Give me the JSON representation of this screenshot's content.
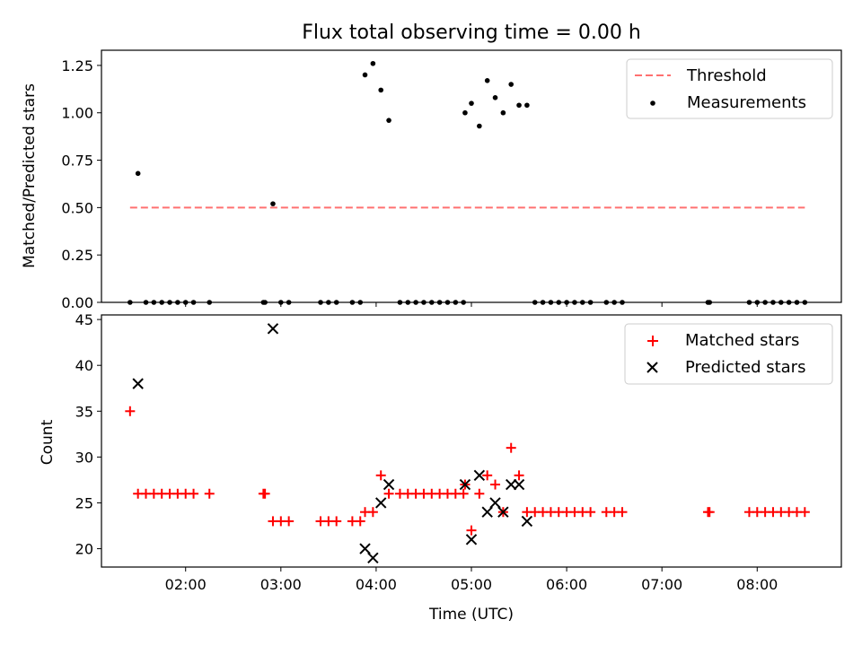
{
  "title": "Flux total observing time = 0.00 h",
  "chart_data": [
    {
      "type": "scatter",
      "ylabel": "Matched/Predicted stars",
      "xlabel": "",
      "xlim": [
        "01:07",
        "08:53"
      ],
      "ylim": [
        0,
        1.33
      ],
      "yticks": [
        "0.00",
        "0.25",
        "0.50",
        "0.75",
        "1.00",
        "1.25"
      ],
      "ytick_values": [
        0,
        0.25,
        0.5,
        0.75,
        1.0,
        1.25
      ],
      "grid": false,
      "legend_position": "top-right",
      "threshold": {
        "name": "Threshold",
        "y": 0.5,
        "x_range": [
          "01:25",
          "08:30"
        ],
        "color": "#ff7070"
      },
      "series": [
        {
          "name": "Measurements",
          "color": "#000000",
          "x": [
            "01:25",
            "01:30",
            "01:35",
            "01:40",
            "01:45",
            "01:50",
            "01:55",
            "02:00",
            "02:05",
            "02:15",
            "02:49",
            "02:50",
            "02:55",
            "03:00",
            "03:05",
            "03:25",
            "03:30",
            "03:35",
            "03:45",
            "03:50",
            "03:53",
            "03:58",
            "04:03",
            "04:08",
            "04:15",
            "04:20",
            "04:25",
            "04:30",
            "04:35",
            "04:40",
            "04:45",
            "04:50",
            "04:55",
            "04:56",
            "05:00",
            "05:05",
            "05:10",
            "05:15",
            "05:20",
            "05:25",
            "05:30",
            "05:35",
            "05:40",
            "05:45",
            "05:50",
            "05:55",
            "06:00",
            "06:05",
            "06:10",
            "06:15",
            "06:25",
            "06:30",
            "06:35",
            "07:29",
            "07:30",
            "07:55",
            "08:00",
            "08:05",
            "08:10",
            "08:15",
            "08:20",
            "08:25",
            "08:30"
          ],
          "y": [
            0,
            0.68,
            0,
            0,
            0,
            0,
            0,
            0,
            0,
            0,
            0,
            0,
            0.52,
            0,
            0,
            0,
            0,
            0,
            0,
            0,
            1.2,
            1.26,
            1.12,
            0.96,
            0,
            0,
            0,
            0,
            0,
            0,
            0,
            0,
            0,
            1.0,
            1.05,
            0.93,
            1.17,
            1.08,
            1.0,
            1.15,
            1.04,
            1.04,
            0,
            0,
            0,
            0,
            0,
            0,
            0,
            0,
            0,
            0,
            0,
            0,
            0,
            0,
            0,
            0,
            0,
            0,
            0,
            0,
            0
          ]
        }
      ]
    },
    {
      "type": "scatter",
      "ylabel": "Count",
      "xlabel": "Time (UTC)",
      "xlim": [
        "01:07",
        "08:53"
      ],
      "xticks": [
        "02:00",
        "03:00",
        "04:00",
        "05:00",
        "06:00",
        "07:00",
        "08:00"
      ],
      "ylim": [
        18,
        45.5
      ],
      "yticks": [
        "20",
        "25",
        "30",
        "35",
        "40",
        "45"
      ],
      "ytick_values": [
        20,
        25,
        30,
        35,
        40,
        45
      ],
      "grid": false,
      "legend_position": "top-right",
      "series": [
        {
          "name": "Matched stars",
          "marker": "+",
          "color": "#ff0000",
          "x": [
            "01:25",
            "01:30",
            "01:35",
            "01:40",
            "01:45",
            "01:50",
            "01:55",
            "02:00",
            "02:05",
            "02:15",
            "02:49",
            "02:50",
            "02:55",
            "03:00",
            "03:05",
            "03:25",
            "03:30",
            "03:35",
            "03:45",
            "03:50",
            "03:53",
            "03:58",
            "04:03",
            "04:08",
            "04:15",
            "04:20",
            "04:25",
            "04:30",
            "04:35",
            "04:40",
            "04:45",
            "04:50",
            "04:55",
            "04:56",
            "05:00",
            "05:05",
            "05:10",
            "05:15",
            "05:20",
            "05:25",
            "05:30",
            "05:35",
            "05:40",
            "05:45",
            "05:50",
            "05:55",
            "06:00",
            "06:05",
            "06:10",
            "06:15",
            "06:25",
            "06:30",
            "06:35",
            "07:29",
            "07:30",
            "07:55",
            "08:00",
            "08:05",
            "08:10",
            "08:15",
            "08:20",
            "08:25",
            "08:30"
          ],
          "y": [
            35,
            26,
            26,
            26,
            26,
            26,
            26,
            26,
            26,
            26,
            26,
            26,
            23,
            23,
            23,
            23,
            23,
            23,
            23,
            23,
            24,
            24,
            28,
            26,
            26,
            26,
            26,
            26,
            26,
            26,
            26,
            26,
            26,
            27,
            22,
            26,
            28,
            27,
            24,
            31,
            28,
            24,
            24,
            24,
            24,
            24,
            24,
            24,
            24,
            24,
            24,
            24,
            24,
            24,
            24,
            24,
            24,
            24,
            24,
            24,
            24,
            24,
            24
          ]
        },
        {
          "name": "Predicted stars",
          "marker": "x",
          "color": "#000000",
          "x": [
            "01:30",
            "02:55",
            "03:53",
            "03:58",
            "04:03",
            "04:08",
            "04:56",
            "05:00",
            "05:05",
            "05:10",
            "05:15",
            "05:20",
            "05:25",
            "05:30",
            "05:35"
          ],
          "y": [
            38,
            44,
            20,
            19,
            25,
            27,
            27,
            21,
            28,
            24,
            25,
            24,
            27,
            27,
            23
          ]
        }
      ]
    }
  ]
}
